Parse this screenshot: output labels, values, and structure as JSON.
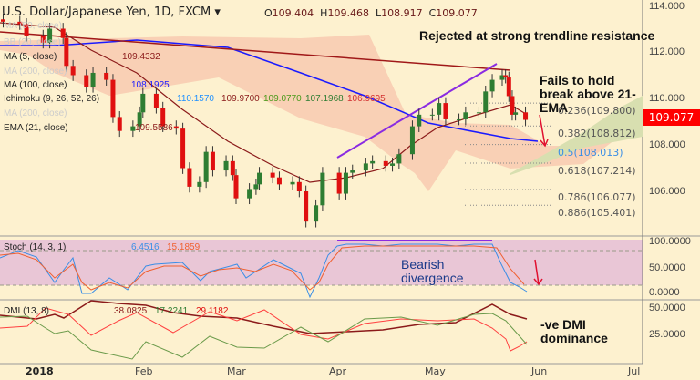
{
  "header": {
    "title": "U.S. Dollar/Japanese Yen, 1D, FXCM",
    "o_label": "O",
    "o": "109.404",
    "h_label": "H",
    "h": "109.468",
    "l_label": "L",
    "l": "108.917",
    "c_label": "C",
    "c": "109.077"
  },
  "indicators": [
    {
      "label": "MA (5, close)",
      "values": [
        "109.4332"
      ],
      "colors": [
        "#8b1a1a"
      ]
    },
    {
      "label": "MA (100, close)",
      "values": [
        "108.1925"
      ],
      "colors": [
        "#1a1aff"
      ]
    },
    {
      "label": "Ichimoku (9, 26, 52, 26)",
      "values": [
        "110.1570",
        "109.9700",
        "109.0770",
        "107.1968",
        "106.9695"
      ],
      "colors": [
        "#1e90ff",
        "#8b1a1a",
        "#4a9a1a",
        "#2e7d32",
        "#d32f2f"
      ]
    },
    {
      "label": "EMA (21, close)",
      "values": [
        "109.5586"
      ],
      "colors": [
        "#8b1a1a"
      ]
    }
  ],
  "hidden_indicators": [
    "MA (50, close)",
    "BB (20, close)",
    "MA (200, close)",
    "MA (200, close)"
  ],
  "annotations": {
    "rejected": "Rejected at strong trendline resistance",
    "fails": "Fails to hold break above 21-EMA",
    "bearish": "Bearish divergence",
    "dmi": "-ve DMI dominance"
  },
  "price_axis": [
    "114.000",
    "112.000",
    "110.000",
    "108.000",
    "106.000"
  ],
  "last_price": "109.077",
  "fib": [
    {
      "label": "0.236(109.800)",
      "value": 109.8
    },
    {
      "label": "0.382(108.812)",
      "value": 108.812
    },
    {
      "label": "0.5(108.013)",
      "value": 108.013
    },
    {
      "label": "0.618(107.214)",
      "value": 107.214
    },
    {
      "label": "0.786(106.077)",
      "value": 106.077
    },
    {
      "label": "0.886(105.401)",
      "value": 105.401
    }
  ],
  "stoch": {
    "label": "Stoch (14, 3, 1)",
    "k": "6.4516",
    "d": "15.1859",
    "axis": [
      "100.0000",
      "50.0000",
      "0.0000"
    ]
  },
  "dmi": {
    "label": "DMI (13, 8)",
    "adx": "38.0825",
    "plus": "17.2241",
    "minus": "29.1182",
    "axis": [
      "50.0000",
      "25.0000"
    ]
  },
  "dates": [
    "2018",
    "Feb",
    "Mar",
    "Apr",
    "May",
    "Jun",
    "Jul"
  ],
  "colors": {
    "up": "#2e7d32",
    "down": "#e01010",
    "background": "#fdf1cf",
    "last_price": "#ff0000"
  },
  "chart_data": {
    "type": "candlestick",
    "x": [
      "2017-12-22",
      "2017-12-27",
      "2017-12-29",
      "2018-01-03",
      "2018-01-05",
      "2018-01-09",
      "2018-01-10",
      "2018-01-12",
      "2018-01-16",
      "2018-01-18",
      "2018-01-22",
      "2018-01-24",
      "2018-01-26",
      "2018-01-30",
      "2018-02-01",
      "2018-02-02",
      "2018-02-06",
      "2018-02-08",
      "2018-02-12",
      "2018-02-14",
      "2018-02-16",
      "2018-02-19",
      "2018-02-21",
      "2018-02-23",
      "2018-02-27",
      "2018-03-01",
      "2018-03-02",
      "2018-03-06",
      "2018-03-08",
      "2018-03-09",
      "2018-03-13",
      "2018-03-15",
      "2018-03-19",
      "2018-03-21",
      "2018-03-23",
      "2018-03-26",
      "2018-03-28",
      "2018-04-02",
      "2018-04-04",
      "2018-04-06",
      "2018-04-10",
      "2018-04-12",
      "2018-04-16",
      "2018-04-18",
      "2018-04-20",
      "2018-04-24",
      "2018-04-26",
      "2018-04-30",
      "2018-05-02",
      "2018-05-04",
      "2018-05-08",
      "2018-05-10",
      "2018-05-14",
      "2018-05-16",
      "2018-05-18",
      "2018-05-21",
      "2018-05-22",
      "2018-05-23",
      "2018-05-24",
      "2018-05-25",
      "2018-05-28"
    ],
    "close": [
      113.3,
      113.2,
      112.7,
      112.4,
      113.0,
      112.6,
      111.4,
      111.0,
      110.5,
      111.1,
      110.8,
      109.2,
      108.6,
      108.8,
      109.4,
      110.2,
      109.6,
      108.8,
      108.7,
      107.0,
      106.2,
      106.4,
      107.7,
      106.9,
      107.3,
      106.7,
      105.7,
      106.1,
      106.3,
      106.8,
      106.6,
      106.3,
      106.4,
      106.0,
      104.7,
      105.4,
      106.8,
      105.9,
      106.8,
      106.9,
      107.2,
      107.3,
      107.1,
      107.2,
      107.6,
      108.8,
      109.3,
      109.3,
      109.8,
      109.1,
      109.1,
      109.4,
      109.4,
      110.3,
      110.8,
      111.0,
      110.9,
      110.1,
      109.3,
      109.4,
      109.077
    ],
    "ylim": [
      104.0,
      114.3
    ]
  }
}
